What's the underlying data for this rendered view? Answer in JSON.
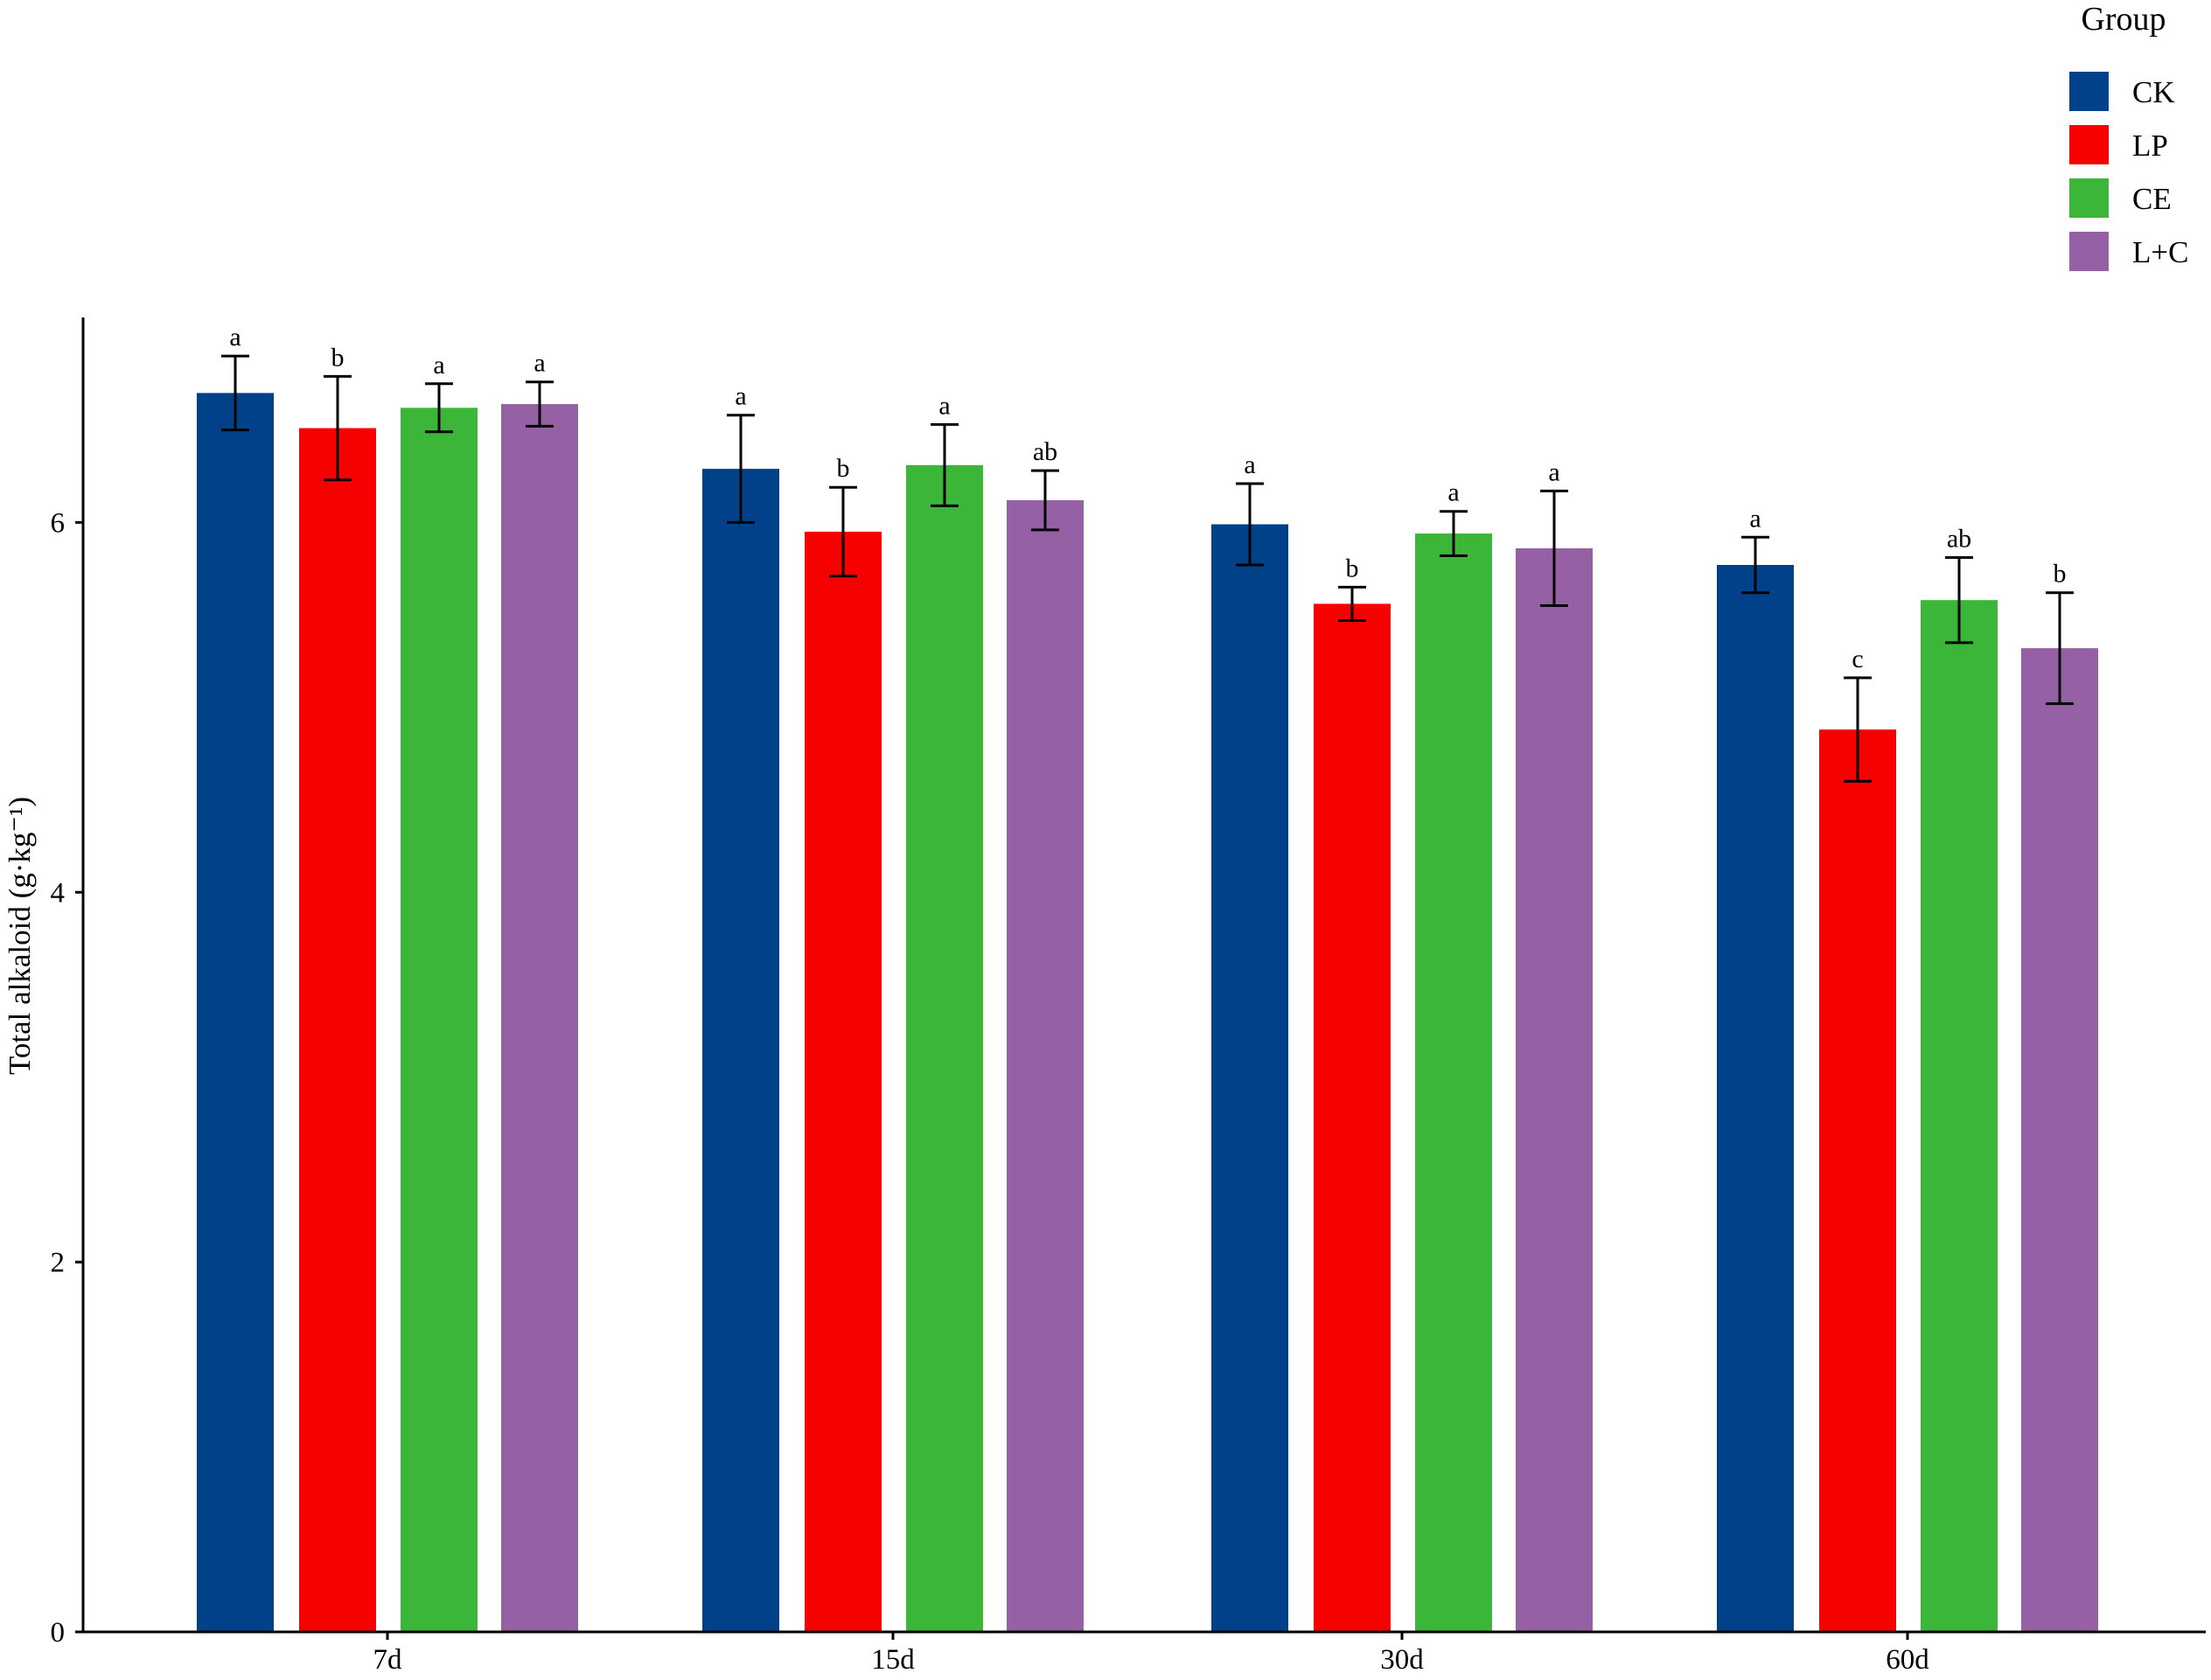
{
  "chart_data": {
    "type": "bar",
    "categories": [
      "7d",
      "15d",
      "30d",
      "60d"
    ],
    "series": [
      {
        "name": "CK",
        "color": "#00418a",
        "values": [
          6.7,
          6.29,
          5.99,
          5.77
        ],
        "errors": [
          0.2,
          0.29,
          0.22,
          0.15
        ],
        "letters": [
          "a",
          "a",
          "a",
          "a"
        ]
      },
      {
        "name": "LP",
        "color": "#f60000",
        "values": [
          6.51,
          5.95,
          5.56,
          4.88
        ],
        "errors": [
          0.28,
          0.24,
          0.09,
          0.28
        ],
        "letters": [
          "b",
          "b",
          "b",
          "c"
        ]
      },
      {
        "name": "CE",
        "color": "#3cb638",
        "values": [
          6.62,
          6.31,
          5.94,
          5.58
        ],
        "errors": [
          0.13,
          0.22,
          0.12,
          0.23
        ],
        "letters": [
          "a",
          "a",
          "a",
          "ab"
        ]
      },
      {
        "name": "L+C",
        "color": "#9660a4",
        "values": [
          6.64,
          6.12,
          5.86,
          5.32
        ],
        "errors": [
          0.12,
          0.16,
          0.31,
          0.3
        ],
        "letters": [
          "a",
          "ab",
          "a",
          "b"
        ]
      }
    ],
    "ylabel": "Total alkaloid (g·kg⁻¹)",
    "ylim": [
      0,
      7.17
    ],
    "yticks": [
      0,
      2,
      4,
      6
    ],
    "grid": false,
    "legend": {
      "title": "Group",
      "position": "top-right"
    }
  }
}
